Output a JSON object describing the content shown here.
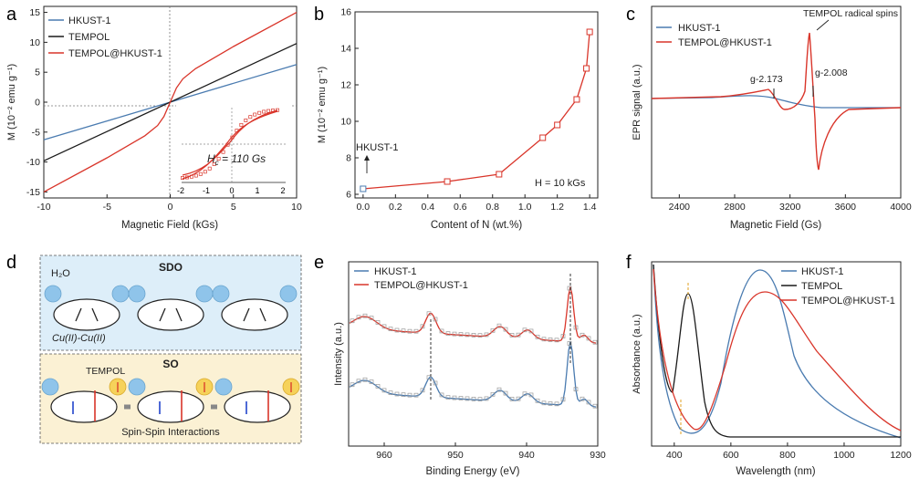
{
  "colors": {
    "blue": "#4a7bb0",
    "black": "#1a1a1a",
    "red": "#d9352a",
    "panel_blue": "#ddeef9",
    "panel_yellow": "#fbf1d4"
  },
  "panel_labels": [
    "a",
    "b",
    "c",
    "d",
    "e",
    "f"
  ],
  "chart_data": [
    {
      "panel": "a",
      "type": "line",
      "xlabel": "Magnetic Field (kGs)",
      "ylabel": "M (10⁻² emu g⁻¹)",
      "xlim": [
        -10,
        10
      ],
      "ylim": [
        -16,
        16
      ],
      "xticks": [
        -10,
        -5,
        0,
        5,
        10
      ],
      "yticks": [
        -15,
        -10,
        -5,
        0,
        5,
        10,
        15
      ],
      "series": [
        {
          "name": "HKUST-1",
          "color": "blue",
          "x": [
            -10,
            10
          ],
          "y": [
            -6.3,
            6.3
          ]
        },
        {
          "name": "TEMPOL",
          "color": "black",
          "x": [
            -10,
            10
          ],
          "y": [
            -9.8,
            9.8
          ]
        },
        {
          "name": "TEMPOL@HKUST-1",
          "color": "red",
          "x": [
            -10,
            -5,
            -2,
            -1,
            -0.5,
            0,
            0.5,
            1,
            2,
            5,
            10
          ],
          "y": [
            -15,
            -9.3,
            -5.6,
            -3.9,
            -2.4,
            0,
            2.4,
            3.9,
            5.6,
            9.3,
            15
          ]
        }
      ],
      "inset": {
        "annotation": "H",
        "annotation_sub": "c",
        "annotation_rest": " = 110 Gs",
        "xticks": [
          -2,
          -1,
          0,
          1,
          2
        ]
      }
    },
    {
      "panel": "b",
      "type": "line",
      "xlabel": "Content of N (wt.%)",
      "ylabel": "M (10⁻² emu g⁻¹)",
      "xlim": [
        -0.05,
        1.45
      ],
      "ylim": [
        5.8,
        16
      ],
      "xticks": [
        0.0,
        0.2,
        0.4,
        0.6,
        0.8,
        1.0,
        1.2,
        1.4
      ],
      "yticks": [
        6,
        8,
        10,
        12,
        14,
        16
      ],
      "x": [
        0.0,
        0.52,
        0.84,
        1.11,
        1.2,
        1.32,
        1.38,
        1.4
      ],
      "y": [
        6.3,
        6.7,
        7.1,
        9.1,
        9.8,
        11.2,
        12.9,
        14.9
      ],
      "annotations": {
        "start": "HKUST-1",
        "field": "H = 10 kGs"
      }
    },
    {
      "panel": "c",
      "type": "line",
      "xlabel": "Magnetic Field (Gs)",
      "ylabel": "EPR signal (a.u.)",
      "xlim": [
        2200,
        4000
      ],
      "xticks": [
        2400,
        2800,
        3200,
        3600,
        4000
      ],
      "series": [
        {
          "name": "HKUST-1",
          "color": "blue"
        },
        {
          "name": "TEMPOL@HKUST-1",
          "color": "red"
        }
      ],
      "annotations": {
        "top": "TEMPOL radical spins",
        "g1": "g-2.173",
        "g2": "g-2.008"
      }
    },
    {
      "panel": "e",
      "type": "line",
      "xlabel": "Binding Energy (eV)",
      "ylabel": "Intensity (a.u.)",
      "xlim": [
        965,
        930
      ],
      "x_reversed": true,
      "xticks": [
        960,
        950,
        940,
        930
      ],
      "series": [
        {
          "name": "HKUST-1",
          "color": "blue"
        },
        {
          "name": "TEMPOL@HKUST-1",
          "color": "red"
        }
      ]
    },
    {
      "panel": "f",
      "type": "line",
      "xlabel": "Wavelength (nm)",
      "ylabel": "Absorbance (a.u.)",
      "xlim": [
        320,
        1200
      ],
      "xticks": [
        400,
        600,
        800,
        1000,
        1200
      ],
      "series": [
        {
          "name": "HKUST-1",
          "color": "blue"
        },
        {
          "name": "TEMPOL",
          "color": "black"
        },
        {
          "name": "TEMPOL@HKUST-1",
          "color": "red"
        }
      ]
    }
  ],
  "schematic": {
    "sdo_title": "SDO",
    "water": "H₂O",
    "cu": "Cu(II)-Cu(II)",
    "so_title": "SO",
    "tempol": "TEMPOL",
    "spin": "Spin-Spin Interactions"
  }
}
